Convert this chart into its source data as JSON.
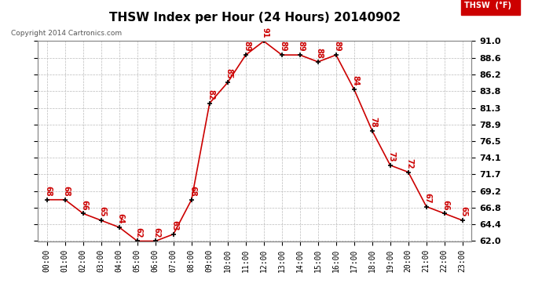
{
  "title": "THSW Index per Hour (24 Hours) 20140902",
  "copyright": "Copyright 2014 Cartronics.com",
  "legend_label": "THSW  (°F)",
  "hours": [
    "00:00",
    "01:00",
    "02:00",
    "03:00",
    "04:00",
    "05:00",
    "06:00",
    "07:00",
    "08:00",
    "09:00",
    "10:00",
    "11:00",
    "12:00",
    "13:00",
    "14:00",
    "15:00",
    "16:00",
    "17:00",
    "18:00",
    "19:00",
    "20:00",
    "21:00",
    "22:00",
    "23:00"
  ],
  "values": [
    68,
    68,
    66,
    65,
    64,
    62,
    62,
    63,
    68,
    82,
    85,
    89,
    91,
    89,
    89,
    88,
    89,
    84,
    78,
    73,
    72,
    67,
    66,
    65
  ],
  "ylim": [
    62.0,
    91.0
  ],
  "yticks": [
    62.0,
    64.4,
    66.8,
    69.2,
    71.7,
    74.1,
    76.5,
    78.9,
    81.3,
    83.8,
    86.2,
    88.6,
    91.0
  ],
  "line_color": "#cc0000",
  "marker_color": "#000000",
  "grid_color": "#bbbbbb",
  "background_color": "#ffffff",
  "title_fontsize": 11,
  "label_color": "#cc0000",
  "annotation_fontsize": 7,
  "ytick_fontsize": 8,
  "xtick_fontsize": 7
}
